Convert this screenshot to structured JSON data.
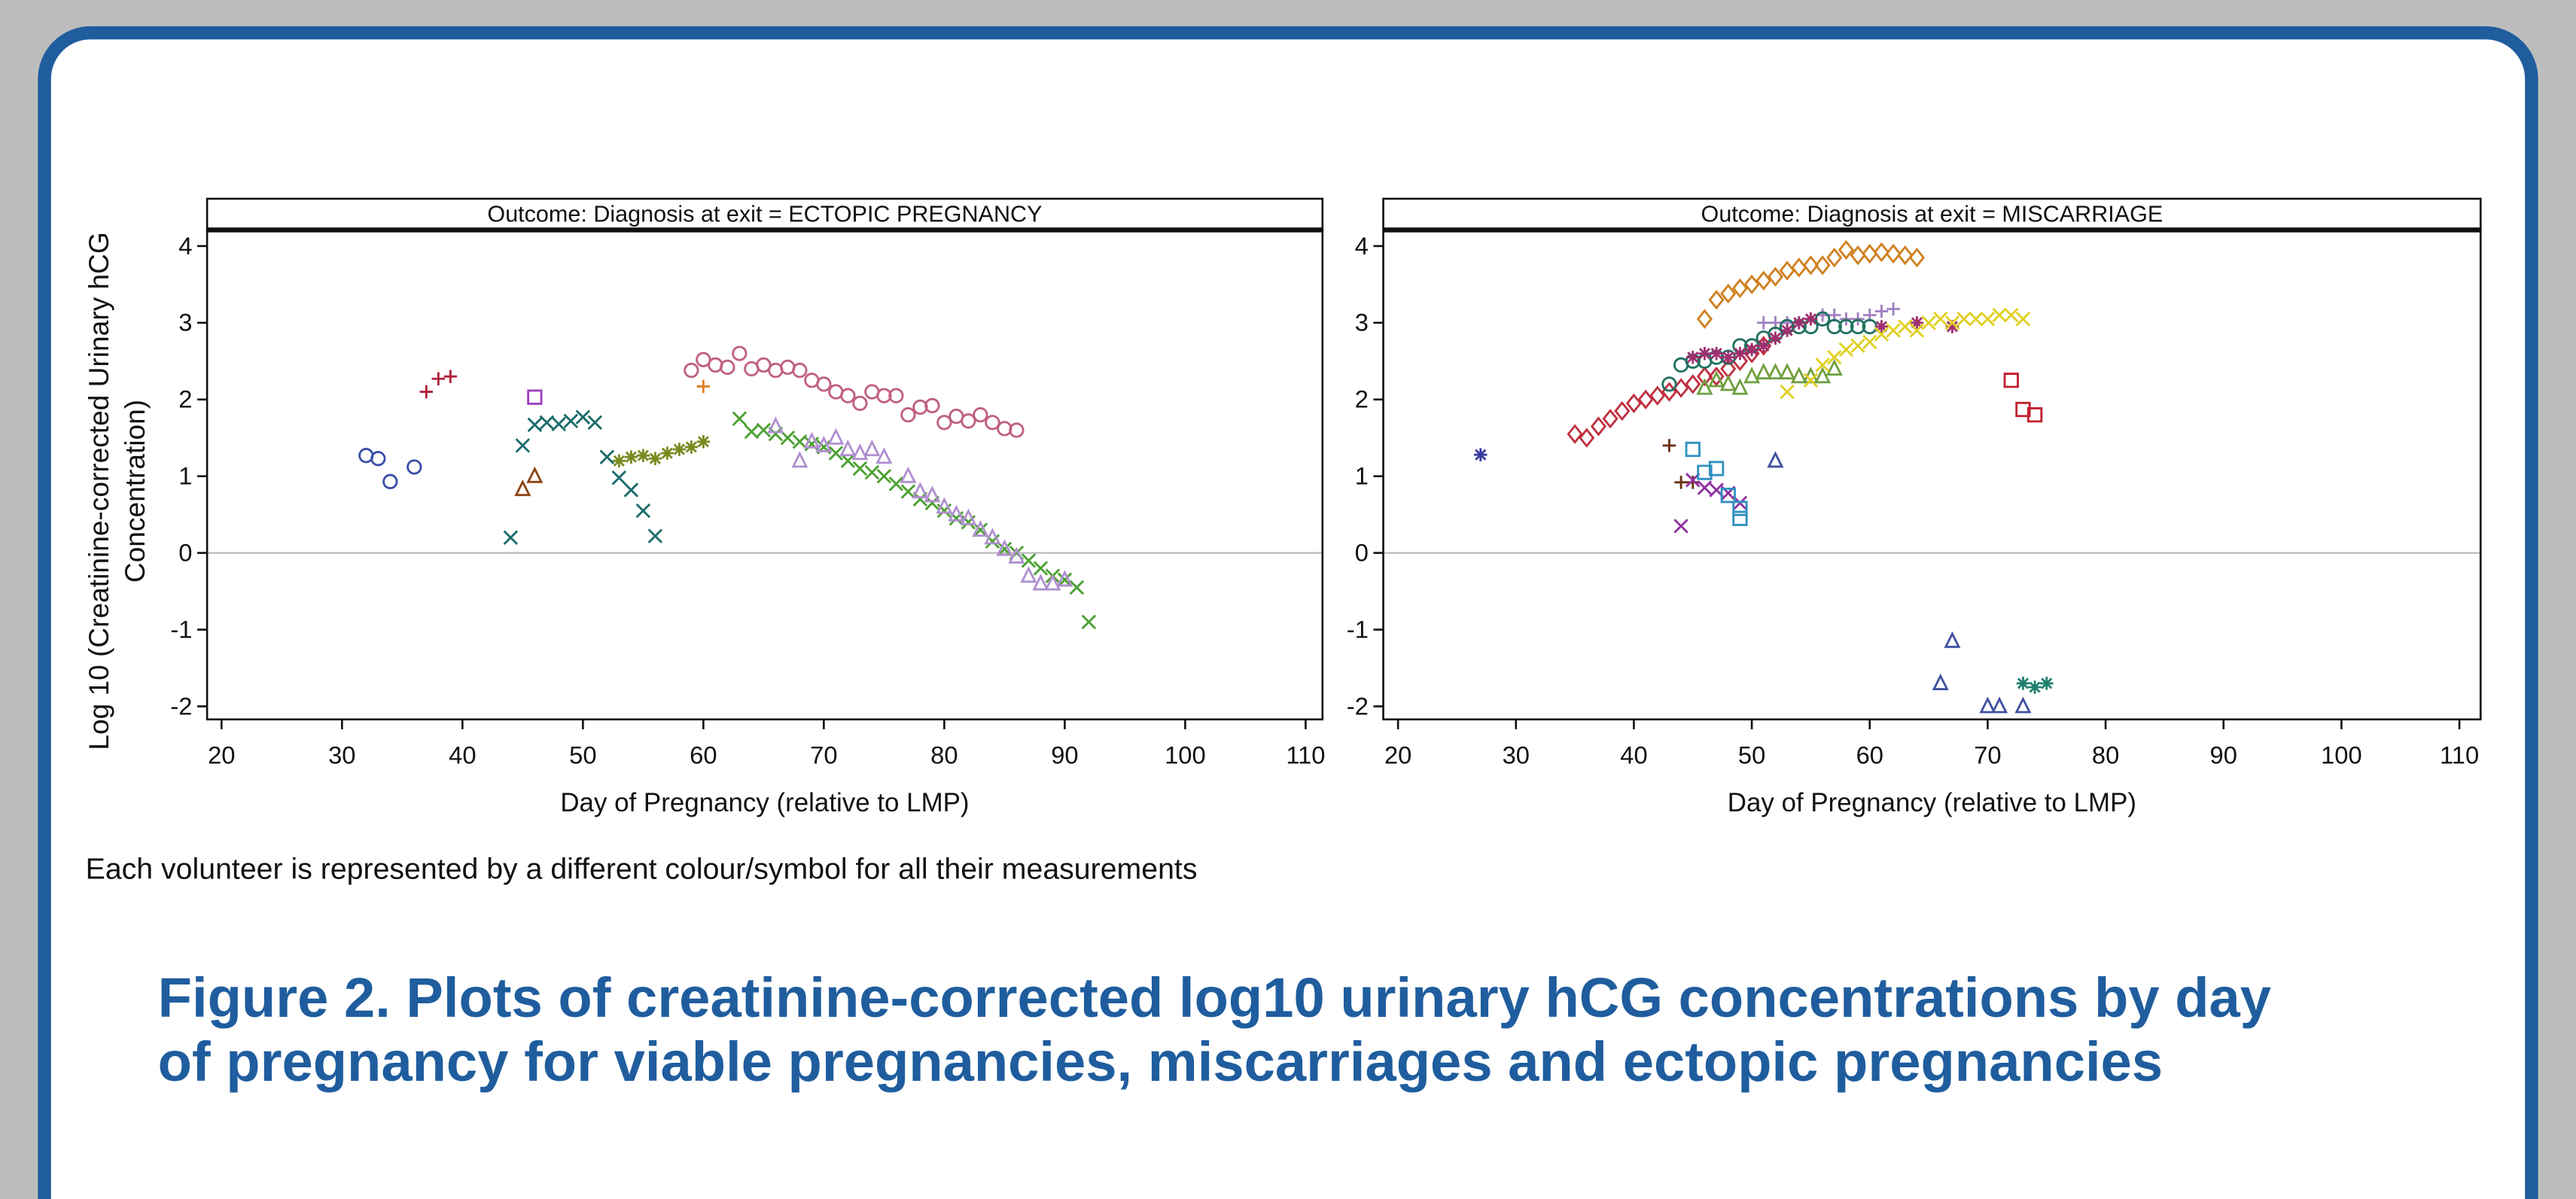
{
  "chart_data": [
    {
      "type": "scatter",
      "title": "Outcome: Diagnosis at exit = ECTOPIC PREGNANCY",
      "xlabel": "Day of Pregnancy (relative to LMP)",
      "ylabel": [
        "Log 10 (Creatinine-corrected Urinary hCG",
        "Concentration)"
      ],
      "xlim": [
        18.8,
        111.4
      ],
      "ylim": [
        -2.17,
        4.21
      ],
      "xticks": [
        20,
        30,
        40,
        50,
        60,
        70,
        80,
        90,
        100,
        110
      ],
      "yticks": [
        -2,
        -1,
        0,
        1,
        2,
        3,
        4
      ],
      "refline": 0,
      "series": [
        {
          "marker": "circle",
          "color": "#3a4fa8",
          "x": [
            32,
            33,
            34,
            36
          ],
          "values": [
            1.27,
            1.23,
            0.93,
            1.12
          ]
        },
        {
          "marker": "plus",
          "color": "#b0203a",
          "x": [
            37,
            38,
            39
          ],
          "values": [
            2.1,
            2.27,
            2.3
          ]
        },
        {
          "marker": "square",
          "color": "#a040c0",
          "x": [
            46
          ],
          "values": [
            2.03
          ]
        },
        {
          "marker": "triangle",
          "color": "#8b4513",
          "x": [
            45,
            46
          ],
          "values": [
            0.83,
            1.0
          ]
        },
        {
          "marker": "x",
          "color": "#1a6b6b",
          "x": [
            44,
            45,
            46,
            47,
            48,
            49,
            50,
            51,
            52,
            53,
            54,
            55,
            56
          ],
          "values": [
            0.2,
            1.4,
            1.67,
            1.7,
            1.68,
            1.72,
            1.77,
            1.7,
            1.25,
            0.98,
            0.82,
            0.55,
            0.22
          ]
        },
        {
          "marker": "star",
          "color": "#7a8a20",
          "x": [
            53,
            54,
            55,
            56,
            57,
            58,
            59,
            60
          ],
          "values": [
            1.2,
            1.25,
            1.27,
            1.23,
            1.3,
            1.35,
            1.38,
            1.45
          ]
        },
        {
          "marker": "plus",
          "color": "#e08020",
          "x": [
            60
          ],
          "values": [
            2.17
          ]
        },
        {
          "marker": "circle",
          "color": "#c06080",
          "x": [
            59,
            60,
            61,
            62,
            63,
            64,
            65,
            66,
            67,
            68,
            69,
            70,
            71,
            72,
            73,
            74,
            75,
            76,
            77,
            78,
            79,
            80,
            81,
            82,
            83,
            84,
            85,
            86
          ],
          "values": [
            2.38,
            2.52,
            2.45,
            2.42,
            2.6,
            2.4,
            2.45,
            2.38,
            2.42,
            2.38,
            2.25,
            2.2,
            2.1,
            2.05,
            1.95,
            2.1,
            2.05,
            2.05,
            1.8,
            1.9,
            1.92,
            1.7,
            1.78,
            1.72,
            1.8,
            1.7,
            1.62,
            1.6
          ]
        },
        {
          "marker": "x",
          "color": "#4aa030",
          "x": [
            63,
            64,
            65,
            66,
            67,
            68,
            69,
            70,
            71,
            72,
            73,
            74,
            75,
            76,
            77,
            78,
            79,
            80,
            81,
            82,
            83,
            84,
            85,
            86,
            87,
            88,
            89,
            90,
            91,
            92
          ],
          "values": [
            1.75,
            1.58,
            1.6,
            1.55,
            1.5,
            1.45,
            1.42,
            1.38,
            1.3,
            1.2,
            1.1,
            1.05,
            1.0,
            0.9,
            0.8,
            0.7,
            0.65,
            0.55,
            0.45,
            0.4,
            0.3,
            0.15,
            0.05,
            0.0,
            -0.1,
            -0.2,
            -0.3,
            -0.35,
            -0.45,
            -0.9
          ]
        },
        {
          "marker": "triangle",
          "color": "#b090d0",
          "x": [
            66,
            68,
            69,
            70,
            71,
            72,
            73,
            74,
            75,
            77,
            78,
            79,
            80,
            81,
            82,
            83,
            84,
            85,
            86,
            87,
            88,
            89,
            90
          ],
          "values": [
            1.65,
            1.2,
            1.45,
            1.4,
            1.5,
            1.35,
            1.3,
            1.35,
            1.25,
            1.0,
            0.8,
            0.75,
            0.6,
            0.5,
            0.45,
            0.3,
            0.2,
            0.05,
            -0.05,
            -0.3,
            -0.4,
            -0.4,
            -0.35
          ]
        }
      ]
    },
    {
      "type": "scatter",
      "title": "Outcome: Diagnosis at exit = MISCARRIAGE",
      "xlabel": "Day of Pregnancy (relative to LMP)",
      "xlim": [
        18.75,
        111.8
      ],
      "ylim": [
        -2.17,
        4.21
      ],
      "xticks": [
        20,
        30,
        40,
        50,
        60,
        70,
        80,
        90,
        100,
        110
      ],
      "yticks": [
        -2,
        -1,
        0,
        1,
        2,
        3,
        4
      ],
      "refline": 0,
      "series": [
        {
          "marker": "star",
          "color": "#3a3aa0",
          "x": [
            27
          ],
          "values": [
            1.28
          ]
        },
        {
          "marker": "diamond",
          "color": "#c03040",
          "x": [
            35,
            36,
            37,
            38,
            39,
            40,
            41,
            42,
            43,
            44,
            45,
            46,
            47,
            48,
            49,
            50,
            51
          ],
          "values": [
            1.55,
            1.5,
            1.65,
            1.75,
            1.85,
            1.95,
            2.0,
            2.05,
            2.1,
            2.15,
            2.2,
            2.3,
            2.3,
            2.4,
            2.5,
            2.6,
            2.7
          ]
        },
        {
          "marker": "diamond",
          "color": "#d08020",
          "x": [
            46,
            47,
            48,
            49,
            50,
            51,
            52,
            53,
            54,
            55,
            56,
            57,
            58,
            59,
            60,
            61,
            62,
            63,
            64
          ],
          "values": [
            3.05,
            3.3,
            3.38,
            3.45,
            3.5,
            3.55,
            3.6,
            3.68,
            3.72,
            3.75,
            3.75,
            3.85,
            3.95,
            3.88,
            3.9,
            3.92,
            3.9,
            3.88,
            3.85
          ]
        },
        {
          "marker": "plus",
          "color": "#a080c0",
          "x": [
            51,
            52,
            53,
            54,
            55,
            56,
            57,
            58,
            59,
            60,
            61,
            62
          ],
          "values": [
            3.0,
            3.0,
            3.0,
            3.0,
            3.05,
            3.1,
            3.1,
            3.05,
            3.05,
            3.1,
            3.15,
            3.18
          ]
        },
        {
          "marker": "circle",
          "color": "#207060",
          "x": [
            43,
            44,
            45,
            46,
            47,
            48,
            49,
            50,
            51,
            52,
            53,
            54,
            55,
            56,
            57,
            58,
            59,
            60
          ],
          "values": [
            2.2,
            2.45,
            2.5,
            2.5,
            2.55,
            2.55,
            2.7,
            2.7,
            2.8,
            2.85,
            2.95,
            2.95,
            2.95,
            3.05,
            2.95,
            2.95,
            2.95,
            2.95
          ]
        },
        {
          "marker": "star",
          "color": "#a03070",
          "x": [
            45,
            46,
            47,
            48,
            49,
            50,
            51,
            52,
            53,
            54,
            55,
            61,
            64,
            67
          ],
          "values": [
            2.55,
            2.6,
            2.6,
            2.55,
            2.6,
            2.65,
            2.7,
            2.8,
            2.9,
            3.0,
            3.05,
            2.95,
            3.0,
            2.95
          ]
        },
        {
          "marker": "triangle",
          "color": "#70a040",
          "x": [
            46,
            47,
            48,
            49,
            50,
            51,
            52,
            53,
            54,
            55,
            56,
            57
          ],
          "values": [
            2.15,
            2.25,
            2.2,
            2.15,
            2.3,
            2.35,
            2.35,
            2.35,
            2.3,
            2.3,
            2.3,
            2.4
          ]
        },
        {
          "marker": "x",
          "color": "#e0d020",
          "x": [
            53,
            55,
            56,
            57,
            58,
            59,
            60,
            61,
            62,
            63,
            64,
            65,
            66,
            67,
            68,
            69,
            70,
            71,
            72,
            73
          ],
          "values": [
            2.1,
            2.25,
            2.45,
            2.55,
            2.65,
            2.7,
            2.75,
            2.85,
            2.9,
            2.95,
            2.9,
            3.0,
            3.05,
            3.0,
            3.05,
            3.05,
            3.05,
            3.1,
            3.1,
            3.05
          ]
        },
        {
          "marker": "square",
          "color": "#c02030",
          "x": [
            72,
            73,
            74
          ],
          "values": [
            2.25,
            1.87,
            1.8
          ]
        },
        {
          "marker": "plus",
          "color": "#6a3010",
          "x": [
            43,
            44,
            45
          ],
          "values": [
            1.4,
            0.92,
            0.92
          ]
        },
        {
          "marker": "x",
          "color": "#9030a0",
          "x": [
            44,
            45,
            46,
            47,
            48,
            49
          ],
          "values": [
            0.35,
            0.95,
            0.85,
            0.82,
            0.78,
            0.65
          ]
        },
        {
          "marker": "square",
          "color": "#3090c0",
          "x": [
            45,
            46,
            47,
            48,
            49,
            49
          ],
          "values": [
            1.35,
            1.05,
            1.1,
            0.75,
            0.58,
            0.45
          ]
        },
        {
          "marker": "triangle",
          "color": "#4050a0",
          "x": [
            52,
            66,
            67,
            70,
            71,
            73
          ],
          "values": [
            1.2,
            -1.7,
            -1.15,
            -2.0,
            -2.0,
            -2.0
          ]
        },
        {
          "marker": "star",
          "color": "#208070",
          "x": [
            73,
            74,
            75
          ],
          "values": [
            -1.7,
            -1.75,
            -1.7
          ]
        }
      ]
    }
  ],
  "note": "Each volunteer is represented by a different colour/symbol for all their measurements",
  "caption": [
    "Figure 2. Plots of creatinine-corrected log10 urinary hCG concentrations by day",
    "of pregnancy for viable pregnancies, miscarriages and ectopic pregnancies"
  ]
}
